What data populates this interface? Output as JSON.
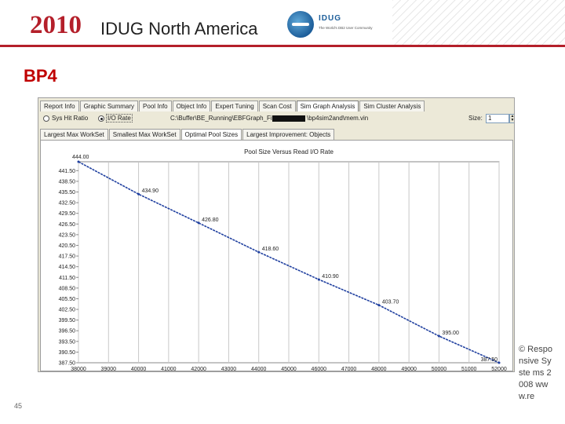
{
  "header": {
    "year": "2010",
    "conference": "IDUG North America",
    "logo_text": "IDUG",
    "logo_subtext": "The World's DB2 User Community"
  },
  "slide": {
    "title": "BP4",
    "number": "45",
    "copyright": "© Respo nsive Syste ms 2008 www.re"
  },
  "app": {
    "tabs": [
      "Report Info",
      "Graphic Summary",
      "Pool Info",
      "Object Info",
      "Expert Tuning",
      "Scan Cost",
      "Sim Graph Analysis",
      "Sim Cluster Analysis"
    ],
    "active_tab": "Sim Graph Analysis",
    "options": {
      "sys_hit_ratio": "Sys Hit Ratio",
      "io_rate": "I/O Rate",
      "io_rate_selected": true,
      "path_prefix": "C:\\Buffer\\BE_Running\\EBFGraph_Files\\",
      "path_suffix": "\\bp4sim2and\\mem.vin",
      "size_label": "Size:",
      "size_value": "1"
    },
    "subtabs": [
      "Largest Max WorkSet",
      "Smallest Max WorkSet",
      "Optimal Pool Sizes",
      "Largest Improvement: Objects"
    ],
    "active_subtab": "Optimal Pool Sizes"
  },
  "chart_data": {
    "type": "line",
    "title": "Pool Size Versus Read I/O Rate",
    "x": [
      38000,
      40000,
      42000,
      44000,
      46000,
      48000,
      50000,
      52000
    ],
    "y": [
      444.0,
      434.9,
      426.8,
      418.6,
      410.9,
      403.7,
      395.0,
      387.5
    ],
    "point_labels": [
      "444.00",
      "434.90",
      "426.80",
      "418.60",
      "410.90",
      "403.70",
      "395.00",
      "387.50"
    ],
    "xticks": [
      "38000",
      "39000",
      "40000",
      "41000",
      "42000",
      "43000",
      "44000",
      "45000",
      "46000",
      "47000",
      "48000",
      "49000",
      "50000",
      "51000",
      "52000"
    ],
    "yticks": [
      "441.50",
      "438.50",
      "435.50",
      "432.50",
      "429.50",
      "426.50",
      "423.50",
      "420.50",
      "417.50",
      "414.50",
      "411.50",
      "408.50",
      "405.50",
      "402.50",
      "399.50",
      "396.50",
      "393.50",
      "390.50",
      "387.50"
    ],
    "xlim": [
      38000,
      52000
    ],
    "ylim": [
      387.5,
      444.0
    ],
    "grid": "vertical",
    "line_color": "#1f3f9f",
    "xlabel": "",
    "ylabel": ""
  }
}
